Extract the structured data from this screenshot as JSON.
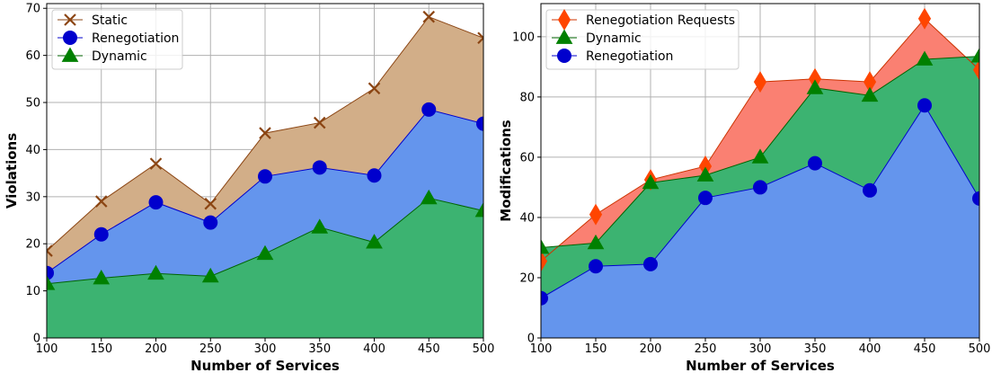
{
  "chart_data": [
    {
      "type": "area",
      "xlabel": "Number of Services",
      "ylabel": "Violations",
      "x": [
        100,
        150,
        200,
        250,
        300,
        350,
        400,
        450,
        500
      ],
      "xticks": [
        100,
        150,
        200,
        250,
        300,
        350,
        400,
        450,
        500
      ],
      "yticks": [
        0,
        10,
        20,
        30,
        40,
        50,
        60,
        70
      ],
      "xlim": [
        100,
        500
      ],
      "ylim": [
        0,
        71
      ],
      "grid": true,
      "legend_position": "top-left",
      "series": [
        {
          "name": "Static",
          "values": [
            18.5,
            29,
            37,
            28.5,
            43.5,
            45.7,
            53,
            68.2,
            63.7
          ],
          "fill": "#d2ae88",
          "line": "#8b4513",
          "marker": "x",
          "marker_color": "#8b4513"
        },
        {
          "name": "Renegotiation",
          "values": [
            13.8,
            22,
            28.8,
            24.5,
            34.3,
            36.2,
            34.5,
            48.5,
            45.5
          ],
          "fill": "#6495ed",
          "line": "#0000cd",
          "marker": "circle",
          "marker_color": "#0000cd"
        },
        {
          "name": "Dynamic",
          "values": [
            11.5,
            12.7,
            13.7,
            13.1,
            17.9,
            23.5,
            20.3,
            29.7,
            27
          ],
          "fill": "#3cb371",
          "line": "#006400",
          "marker": "triangle",
          "marker_color": "#008000"
        }
      ]
    },
    {
      "type": "area",
      "xlabel": "Number of Services",
      "ylabel": "Modifications",
      "x": [
        100,
        150,
        200,
        250,
        300,
        350,
        400,
        450,
        500
      ],
      "xticks": [
        100,
        150,
        200,
        250,
        300,
        350,
        400,
        450,
        500
      ],
      "yticks": [
        0,
        20,
        40,
        60,
        80,
        100
      ],
      "xlim": [
        100,
        500
      ],
      "ylim": [
        0,
        111
      ],
      "grid": true,
      "legend_position": "top-left",
      "series": [
        {
          "name": "Renegotiation Requests",
          "values": [
            25.5,
            41,
            52.5,
            57,
            85,
            86,
            85,
            106,
            89
          ],
          "fill": "#fa8072",
          "line": "#cc3300",
          "marker": "diamond",
          "marker_color": "#ff4500"
        },
        {
          "name": "Dynamic",
          "values": [
            30,
            31.5,
            51.5,
            54,
            60,
            83,
            80.5,
            92.5,
            93.5
          ],
          "fill": "#3cb371",
          "line": "#006400",
          "marker": "triangle",
          "marker_color": "#008000"
        },
        {
          "name": "Renegotiation",
          "values": [
            13.2,
            23.8,
            24.5,
            46.5,
            50,
            58,
            49,
            77.2,
            46.3
          ],
          "fill": "#6495ed",
          "line": "#0000cd",
          "marker": "circle",
          "marker_color": "#0000cd"
        }
      ]
    }
  ]
}
